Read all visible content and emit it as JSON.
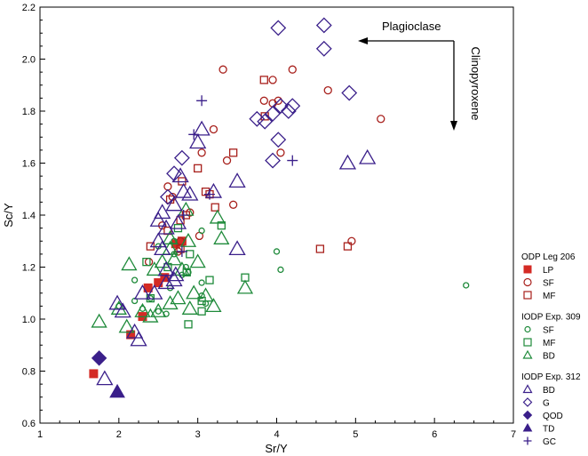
{
  "chart_data": {
    "type": "scatter",
    "xlabel": "Sr/Y",
    "ylabel": "Sc/Y",
    "xlim": [
      1,
      7
    ],
    "ylim": [
      0.6,
      2.2
    ],
    "xticks": [
      1,
      2,
      3,
      4,
      5,
      6,
      7
    ],
    "yticks": [
      0.6,
      0.8,
      1.0,
      1.2,
      1.4,
      1.6,
      1.8,
      2.0,
      2.2
    ],
    "ytick_labels": [
      "0.6",
      "0.8",
      "1.0",
      "1.2",
      "1.4",
      "1.6",
      "1.8",
      "2.0",
      "2.2"
    ],
    "grid": false,
    "legend_placement": "right",
    "annotations": {
      "plagioclase": "Plagioclase",
      "clinopyroxene": "Clinopyroxene"
    },
    "legend_groups": [
      {
        "title": "ODP Leg 206",
        "entries": [
          "LP",
          "SF",
          "MF"
        ]
      },
      {
        "title": "IODP Exp. 309",
        "entries": [
          "SF",
          "MF",
          "BD"
        ]
      },
      {
        "title": "IODP Exp. 312",
        "entries": [
          "BD",
          "G",
          "QOD",
          "TD",
          "GC"
        ]
      }
    ],
    "series": [
      {
        "group": "ODP Leg 206",
        "name": "LP",
        "marker": "square-filled",
        "color": "#d42a24",
        "points": [
          [
            1.68,
            0.79
          ],
          [
            2.15,
            0.94
          ],
          [
            2.3,
            1.01
          ],
          [
            2.37,
            1.12
          ],
          [
            2.5,
            1.14
          ],
          [
            2.58,
            1.16
          ],
          [
            2.72,
            1.29
          ],
          [
            2.8,
            1.3
          ]
        ]
      },
      {
        "group": "ODP Leg 206",
        "name": "SF",
        "marker": "circle-open",
        "color": "#a8201c",
        "points": [
          [
            3.32,
            1.96
          ],
          [
            4.2,
            1.96
          ],
          [
            3.95,
            1.92
          ],
          [
            3.84,
            1.84
          ],
          [
            3.95,
            1.83
          ],
          [
            4.02,
            1.84
          ],
          [
            4.65,
            1.88
          ],
          [
            5.32,
            1.77
          ],
          [
            3.2,
            1.73
          ],
          [
            4.05,
            1.64
          ],
          [
            3.05,
            1.64
          ],
          [
            3.37,
            1.61
          ],
          [
            2.62,
            1.51
          ],
          [
            2.68,
            1.47
          ],
          [
            2.9,
            1.41
          ],
          [
            3.45,
            1.44
          ],
          [
            2.55,
            1.36
          ],
          [
            2.78,
            1.3
          ],
          [
            3.02,
            1.32
          ],
          [
            2.38,
            1.22
          ],
          [
            2.75,
            1.26
          ],
          [
            4.95,
            1.3
          ]
        ]
      },
      {
        "group": "ODP Leg 206",
        "name": "MF",
        "marker": "square-open",
        "color": "#a8201c",
        "points": [
          [
            3.84,
            1.92
          ],
          [
            3.85,
            1.78
          ],
          [
            3.45,
            1.64
          ],
          [
            3.0,
            1.58
          ],
          [
            2.8,
            1.53
          ],
          [
            3.1,
            1.49
          ],
          [
            3.15,
            1.48
          ],
          [
            2.65,
            1.46
          ],
          [
            2.78,
            1.38
          ],
          [
            2.85,
            1.4
          ],
          [
            3.22,
            1.43
          ],
          [
            2.62,
            1.34
          ],
          [
            2.4,
            1.28
          ],
          [
            2.78,
            1.27
          ],
          [
            4.55,
            1.27
          ],
          [
            4.9,
            1.28
          ]
        ]
      },
      {
        "group": "IODP Exp. 309",
        "name": "SF",
        "marker": "circle-open-small",
        "color": "#1e8a3a",
        "points": [
          [
            4.0,
            1.26
          ],
          [
            4.05,
            1.19
          ],
          [
            6.4,
            1.13
          ],
          [
            3.05,
            1.34
          ],
          [
            2.7,
            1.3
          ],
          [
            2.5,
            1.28
          ],
          [
            2.7,
            1.25
          ],
          [
            2.88,
            1.18
          ],
          [
            3.05,
            1.14
          ],
          [
            2.85,
            1.2
          ],
          [
            2.4,
            1.08
          ],
          [
            2.65,
            1.12
          ],
          [
            2.5,
            1.03
          ],
          [
            3.05,
            1.09
          ],
          [
            2.0,
            1.05
          ],
          [
            2.2,
            1.07
          ],
          [
            2.3,
            1.04
          ],
          [
            2.6,
            1.02
          ],
          [
            2.8,
            1.17
          ],
          [
            3.1,
            1.06
          ],
          [
            2.2,
            1.15
          ]
        ]
      },
      {
        "group": "IODP Exp. 309",
        "name": "MF",
        "marker": "square-open",
        "color": "#1e8a3a",
        "points": [
          [
            3.6,
            1.16
          ],
          [
            3.15,
            1.15
          ],
          [
            3.05,
            1.03
          ],
          [
            3.05,
            1.07
          ],
          [
            2.88,
            0.98
          ],
          [
            2.75,
            1.35
          ],
          [
            3.3,
            1.36
          ],
          [
            2.62,
            1.2
          ],
          [
            2.86,
            1.18
          ],
          [
            2.35,
            1.22
          ],
          [
            2.9,
            1.25
          ],
          [
            2.4,
            1.08
          ]
        ]
      },
      {
        "group": "IODP Exp. 309",
        "name": "BD",
        "marker": "triangle-open",
        "color": "#1e8a3a",
        "points": [
          [
            2.13,
            1.21
          ],
          [
            2.85,
            1.42
          ],
          [
            3.25,
            1.39
          ],
          [
            3.3,
            1.31
          ],
          [
            2.65,
            1.31
          ],
          [
            2.88,
            1.3
          ],
          [
            2.55,
            1.22
          ],
          [
            2.7,
            1.23
          ],
          [
            2.45,
            1.19
          ],
          [
            2.95,
            1.1
          ],
          [
            3.1,
            1.09
          ],
          [
            3.6,
            1.12
          ],
          [
            2.75,
            1.08
          ],
          [
            2.9,
            1.04
          ],
          [
            2.4,
            1.01
          ],
          [
            2.1,
            0.97
          ],
          [
            2.3,
            1.03
          ],
          [
            2.5,
            1.03
          ],
          [
            2.65,
            1.06
          ],
          [
            3.2,
            1.05
          ],
          [
            2.0,
            1.04
          ],
          [
            1.75,
            0.99
          ],
          [
            2.65,
            1.27
          ],
          [
            2.8,
            1.19
          ],
          [
            3.0,
            1.22
          ]
        ]
      },
      {
        "group": "IODP Exp. 312",
        "name": "BD",
        "marker": "triangle-open-large",
        "color": "#3a1f8a",
        "points": [
          [
            3.05,
            1.73
          ],
          [
            3.0,
            1.68
          ],
          [
            2.78,
            1.55
          ],
          [
            2.82,
            1.49
          ],
          [
            2.7,
            1.44
          ],
          [
            2.75,
            1.37
          ],
          [
            3.5,
            1.53
          ],
          [
            2.9,
            1.48
          ],
          [
            3.2,
            1.49
          ],
          [
            3.5,
            1.27
          ],
          [
            2.5,
            1.38
          ],
          [
            2.55,
            1.41
          ],
          [
            2.6,
            1.35
          ],
          [
            2.5,
            1.3
          ],
          [
            2.55,
            1.27
          ],
          [
            2.6,
            1.19
          ],
          [
            2.7,
            1.15
          ],
          [
            2.45,
            1.1
          ],
          [
            2.6,
            1.14
          ],
          [
            2.72,
            1.17
          ],
          [
            2.3,
            1.1
          ],
          [
            1.98,
            1.06
          ],
          [
            2.05,
            1.03
          ],
          [
            2.2,
            0.95
          ],
          [
            2.25,
            0.92
          ],
          [
            1.82,
            0.77
          ],
          [
            4.9,
            1.6
          ],
          [
            5.15,
            1.62
          ]
        ]
      },
      {
        "group": "IODP Exp. 312",
        "name": "G",
        "marker": "diamond-open",
        "color": "#3a1f8a",
        "points": [
          [
            4.02,
            2.12
          ],
          [
            4.6,
            2.13
          ],
          [
            4.6,
            2.04
          ],
          [
            4.92,
            1.87
          ],
          [
            3.75,
            1.77
          ],
          [
            3.85,
            1.76
          ],
          [
            3.95,
            1.79
          ],
          [
            4.05,
            1.82
          ],
          [
            4.15,
            1.8
          ],
          [
            4.2,
            1.82
          ],
          [
            4.02,
            1.69
          ],
          [
            3.95,
            1.61
          ],
          [
            2.8,
            1.62
          ],
          [
            2.7,
            1.56
          ],
          [
            2.62,
            1.47
          ]
        ]
      },
      {
        "group": "IODP Exp. 312",
        "name": "QOD",
        "marker": "diamond-filled",
        "color": "#3a1f8a",
        "points": [
          [
            1.75,
            0.85
          ]
        ]
      },
      {
        "group": "IODP Exp. 312",
        "name": "TD",
        "marker": "triangle-filled",
        "color": "#3a1f8a",
        "points": [
          [
            1.98,
            0.72
          ]
        ]
      },
      {
        "group": "IODP Exp. 312",
        "name": "GC",
        "marker": "plus",
        "color": "#3a1f8a",
        "points": [
          [
            3.05,
            1.84
          ],
          [
            2.95,
            1.71
          ],
          [
            4.2,
            1.61
          ],
          [
            3.15,
            1.48
          ],
          [
            2.82,
            1.4
          ],
          [
            2.8,
            1.26
          ]
        ]
      }
    ]
  }
}
